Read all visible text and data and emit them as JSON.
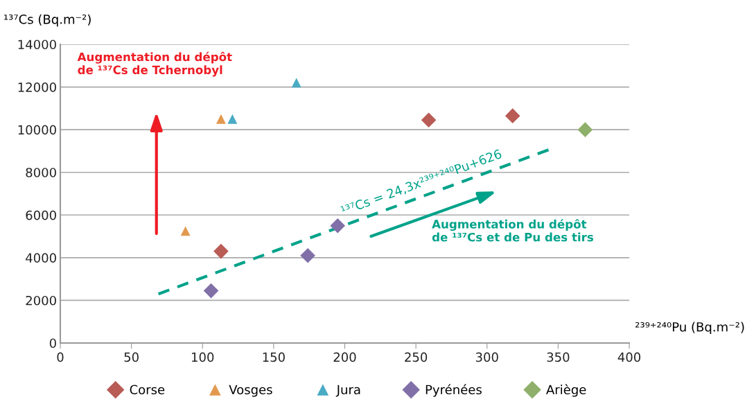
{
  "chart_data": {
    "type": "scatter",
    "ylabel": "¹³⁷Cs (Bq.m⁻²)",
    "xlabel": "²³⁹⁺²⁴⁰Pu (Bq.m⁻²)",
    "xlim": [
      0,
      400
    ],
    "xticks": [
      0,
      50,
      100,
      150,
      200,
      250,
      300,
      350,
      400
    ],
    "ylim": [
      0,
      14000
    ],
    "yticks": [
      0,
      2000,
      4000,
      6000,
      8000,
      10000,
      12000,
      14000
    ],
    "grid": "y",
    "legend": "bottom",
    "series": [
      {
        "name": "Corse",
        "color": "#b85c55",
        "marker": "diamond",
        "x": [
          113,
          259,
          318
        ],
        "values": [
          4300,
          10450,
          10650
        ]
      },
      {
        "name": "Vosges",
        "color": "#e2994f",
        "marker": "triangle",
        "x": [
          88,
          113
        ],
        "values": [
          5250,
          10500
        ]
      },
      {
        "name": "Jura",
        "color": "#4aabc4",
        "marker": "triangle",
        "x": [
          121,
          166
        ],
        "values": [
          10500,
          12200
        ]
      },
      {
        "name": "Pyrénées",
        "color": "#8170a8",
        "marker": "diamond",
        "x": [
          106,
          174,
          195
        ],
        "values": [
          2450,
          4100,
          5500
        ]
      },
      {
        "name": "Ariège",
        "color": "#8fb06b",
        "marker": "diamond",
        "x": [
          369
        ],
        "values": [
          10000
        ]
      },
      {
        "type": "line",
        "color": "#00a28a",
        "line_style": "dashed",
        "marker": "none",
        "x": [
          69,
          345
        ],
        "values": [
          2300,
          9100
        ]
      }
    ],
    "annotations": [
      "Augmentation du dépôt\nde ¹³⁷Cs de Tchernobyl",
      "¹³⁷Cs = 24,3x²³⁹⁺²⁴⁰Pu+626",
      "Augmentation du dépôt\nde ¹³⁷Cs et de Pu des tirs"
    ]
  }
}
